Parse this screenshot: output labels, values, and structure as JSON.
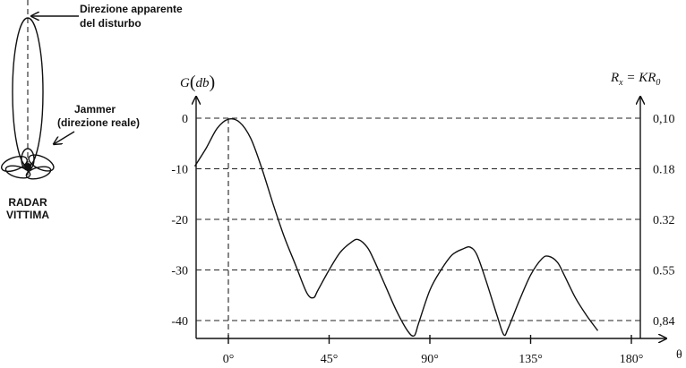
{
  "radar_diagram": {
    "apparent_direction_label_line1": "Direzione apparente",
    "apparent_direction_label_line2": "del disturbo",
    "jammer_label_line1": "Jammer",
    "jammer_label_line2": "(direzione  reale)",
    "radar_label_line1": "RADAR",
    "radar_label_line2": "VITTIMA"
  },
  "chart_data": {
    "type": "line",
    "y_axis_label": "G(db)",
    "right_axis_label": "Rx = KR0",
    "x_axis_label": "θ",
    "x_ticks": [
      "0°",
      "45°",
      "90°",
      "135°",
      "180°"
    ],
    "x_tick_values": [
      0,
      45,
      90,
      135,
      180
    ],
    "y_ticks": [
      "0",
      "-10",
      "-20",
      "-30",
      "-40"
    ],
    "y_tick_values": [
      0,
      -10,
      -20,
      -30,
      -40
    ],
    "right_ticks": [
      "0,10",
      "0.18",
      "0.32",
      "0.55",
      "0,84"
    ],
    "xlim": [
      -15,
      190
    ],
    "ylim": [
      -43,
      5
    ],
    "grid": "horizontal dashed at y ticks",
    "series": [
      {
        "x": [
          -15,
          -10,
          -5,
          0,
          5,
          10,
          15,
          20,
          25,
          30,
          35,
          38,
          40,
          45,
          50,
          55,
          58,
          62,
          65,
          70,
          75,
          80,
          83,
          85,
          90,
          95,
          100,
          105,
          108,
          111,
          115,
          120,
          123,
          125,
          130,
          135,
          140,
          143,
          147,
          150,
          155,
          160,
          165
        ],
        "y": [
          -9.5,
          -6,
          -2,
          -0.2,
          -0.8,
          -4,
          -10,
          -17,
          -23.5,
          -29,
          -34.5,
          -35.5,
          -34,
          -30,
          -26.5,
          -24.5,
          -24,
          -25.5,
          -28,
          -33,
          -38,
          -42,
          -43,
          -40.5,
          -34,
          -30,
          -27,
          -25.8,
          -25.5,
          -27,
          -32,
          -39,
          -42.8,
          -41.5,
          -36,
          -31,
          -27.8,
          -27.3,
          -28.5,
          -31,
          -35.5,
          -39,
          -42
        ]
      }
    ]
  }
}
